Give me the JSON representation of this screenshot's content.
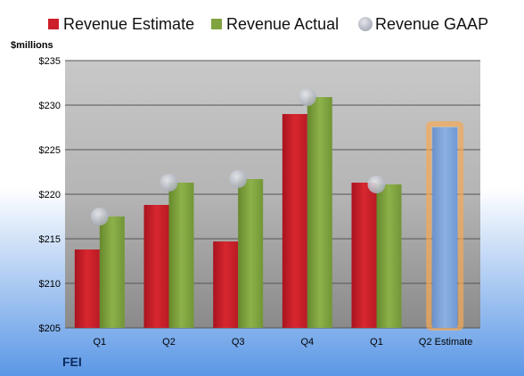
{
  "chart_data": {
    "type": "bar",
    "ylabel": "$millions",
    "ylim": [
      205,
      235
    ],
    "y_ticks": [
      "$205",
      "$210",
      "$215",
      "$220",
      "$225",
      "$230",
      "$235"
    ],
    "y_tick_values": [
      205,
      210,
      215,
      220,
      225,
      230,
      235
    ],
    "categories": [
      "Q1",
      "Q2",
      "Q3",
      "Q4",
      "Q1",
      "Q2 Estimate"
    ],
    "series": [
      {
        "name": "Revenue Estimate",
        "type": "bar",
        "color": "#cc1f2b",
        "values": [
          213.8,
          218.8,
          214.7,
          229.0,
          221.3,
          null
        ]
      },
      {
        "name": "Revenue Actual",
        "type": "bar",
        "color": "#7fa33f",
        "values": [
          217.5,
          221.3,
          221.7,
          230.9,
          221.1,
          null
        ]
      },
      {
        "name": "Revenue GAAP",
        "type": "scatter",
        "color": "#b9bcc6",
        "values": [
          217.5,
          221.3,
          221.7,
          230.9,
          221.1,
          null
        ]
      },
      {
        "name": "",
        "type": "bar",
        "color": "#7ea3d6",
        "highlight": "#f5a855",
        "values": [
          null,
          null,
          null,
          null,
          null,
          227.5
        ]
      }
    ],
    "grid": true,
    "legend_position": "top",
    "company": "FEI",
    "background_top": "#ffffff",
    "background_bottom": "#5b97e6"
  }
}
